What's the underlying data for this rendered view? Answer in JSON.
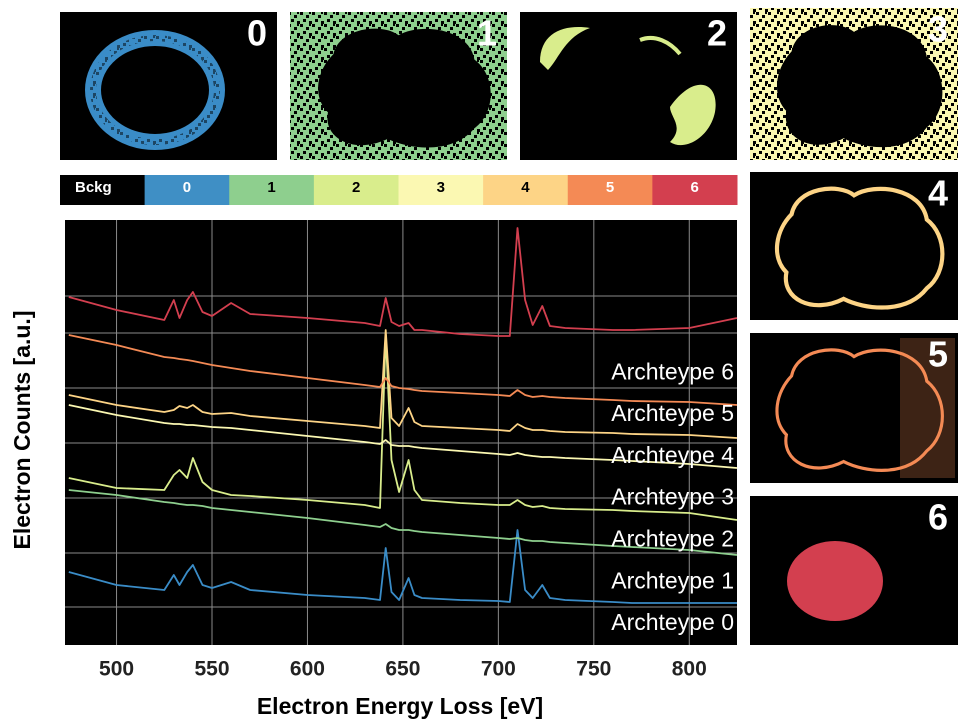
{
  "chart_data": {
    "type": "line",
    "xlabel": "Electron Energy Loss [eV]",
    "ylabel": "Electron Counts [a.u.]",
    "xlim": [
      473,
      825
    ],
    "xticks": [
      500,
      550,
      600,
      650,
      700,
      750,
      800
    ],
    "ylim": [
      0,
      425
    ],
    "yticks": [
      38,
      92,
      147,
      202,
      257,
      312,
      349
    ],
    "grid": true,
    "x": [
      475,
      500,
      525,
      530,
      533,
      537,
      540,
      545,
      550,
      560,
      570,
      600,
      630,
      638,
      641,
      644,
      648,
      653,
      656,
      660,
      680,
      700,
      706,
      710,
      714,
      718,
      723,
      727,
      735,
      760,
      770,
      800,
      825
    ],
    "series": [
      {
        "name": "Archteype 0",
        "color": "#3a8cc7",
        "values": [
          73,
          60,
          55,
          70,
          60,
          73,
          80,
          60,
          57,
          63,
          55,
          50,
          47,
          45,
          97,
          53,
          45,
          67,
          50,
          47,
          45,
          44,
          43,
          115,
          55,
          47,
          60,
          47,
          45,
          43,
          42,
          42,
          42
        ]
      },
      {
        "name": "Archteype 1",
        "color": "#8ecf8e",
        "values": [
          155,
          150,
          143,
          142,
          141,
          140,
          140,
          139,
          137,
          135,
          133,
          127,
          120,
          118,
          121,
          117,
          115,
          115,
          114,
          113,
          110,
          107,
          106,
          107,
          105,
          104,
          104,
          103,
          102,
          99,
          98,
          95,
          90
        ]
      },
      {
        "name": "Archteype 2",
        "color": "#d9ed8c",
        "values": [
          167,
          157,
          155,
          170,
          175,
          167,
          187,
          163,
          155,
          150,
          149,
          145,
          140,
          137,
          310,
          185,
          153,
          185,
          155,
          145,
          142,
          140,
          140,
          145,
          140,
          138,
          139,
          137,
          136,
          135,
          134,
          132,
          125
        ]
      },
      {
        "name": "Archteype 3",
        "color": "#fbf8b2",
        "values": [
          240,
          230,
          222,
          221,
          221,
          220,
          220,
          219,
          218,
          217,
          215,
          209,
          203,
          201,
          205,
          200,
          199,
          199,
          198,
          197,
          194,
          191,
          190,
          192,
          190,
          189,
          188,
          188,
          187,
          185,
          184,
          181,
          177
        ]
      },
      {
        "name": "Archteype 4",
        "color": "#fdd486",
        "values": [
          250,
          240,
          233,
          235,
          239,
          237,
          240,
          233,
          231,
          232,
          229,
          224,
          219,
          217,
          315,
          227,
          219,
          237,
          223,
          219,
          217,
          215,
          214,
          221,
          217,
          215,
          215,
          214,
          213,
          212,
          211,
          210,
          207
        ]
      },
      {
        "name": "Archteype 5",
        "color": "#f48a55",
        "values": [
          310,
          300,
          288,
          287,
          286,
          285,
          284,
          282,
          280,
          277,
          274,
          267,
          260,
          258,
          267,
          259,
          257,
          256,
          255,
          254,
          252,
          250,
          249,
          255,
          250,
          248,
          249,
          248,
          247,
          245,
          244,
          243,
          240
        ]
      },
      {
        "name": "Archteype 6",
        "color": "#d33f4f",
        "values": [
          348,
          335,
          325,
          345,
          327,
          345,
          353,
          333,
          329,
          342,
          331,
          327,
          322,
          319,
          347,
          323,
          319,
          322,
          315,
          315,
          311,
          309,
          309,
          417,
          345,
          320,
          339,
          319,
          317,
          315,
          315,
          317,
          327
        ]
      }
    ],
    "colorbar": [
      {
        "label": "Bckg",
        "color": "#000000",
        "text_color": "#ffffff"
      },
      {
        "label": "0",
        "color": "#3f8fc5",
        "text_color": "#ffffff"
      },
      {
        "label": "1",
        "color": "#8ecf8e",
        "text_color": "#000000"
      },
      {
        "label": "2",
        "color": "#d9ed8c",
        "text_color": "#000000"
      },
      {
        "label": "3",
        "color": "#fbf8b2",
        "text_color": "#000000"
      },
      {
        "label": "4",
        "color": "#fdd486",
        "text_color": "#000000"
      },
      {
        "label": "5",
        "color": "#f48a55",
        "text_color": "#ffffff"
      },
      {
        "label": "6",
        "color": "#d33f4f",
        "text_color": "#ffffff"
      }
    ],
    "maps": [
      {
        "label": "0",
        "color": "#3a8cc7"
      },
      {
        "label": "1",
        "color": "#8ecf8e"
      },
      {
        "label": "2",
        "color": "#d9ed8c"
      },
      {
        "label": "3",
        "color": "#fbf8b2"
      },
      {
        "label": "4",
        "color": "#fdd486"
      },
      {
        "label": "5",
        "color": "#f48a55"
      },
      {
        "label": "6",
        "color": "#d33f4f"
      }
    ]
  }
}
